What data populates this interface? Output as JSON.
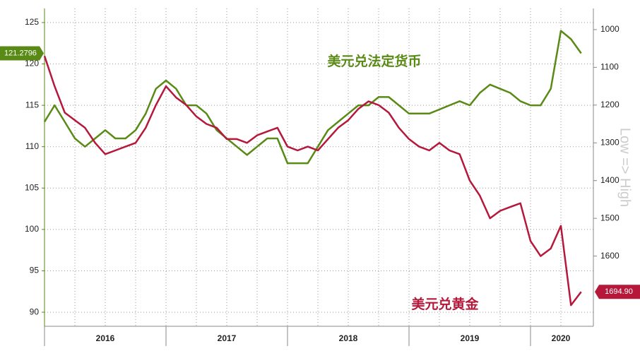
{
  "chart_data": {
    "type": "line",
    "annotations": [
      {
        "text": "美元兑法定货币",
        "series": 0
      },
      {
        "text": "美元兑黄金",
        "series": 1
      }
    ],
    "y2_title": "Low => High",
    "categories": [
      null,
      null,
      null,
      null,
      null,
      null,
      "2016",
      null,
      null,
      null,
      null,
      null,
      null,
      null,
      null,
      null,
      null,
      null,
      "2017",
      null,
      null,
      null,
      null,
      null,
      null,
      null,
      null,
      null,
      null,
      null,
      "2018",
      null,
      null,
      null,
      null,
      null,
      null,
      null,
      null,
      null,
      null,
      null,
      "2019",
      null,
      null,
      null,
      null,
      null,
      null,
      null,
      null,
      "2020",
      null,
      null
    ],
    "series": [
      {
        "name": "美元兑法定货币",
        "color": "#5a8a16",
        "axis": "y",
        "values": [
          113,
          115,
          113,
          111,
          110,
          111,
          112,
          111,
          111,
          112,
          114,
          117,
          118,
          117,
          115,
          115,
          114,
          112,
          111,
          110,
          109,
          110,
          111,
          111,
          108,
          108,
          108,
          110,
          112,
          113,
          114,
          115,
          115,
          116,
          116,
          115,
          114,
          114,
          114,
          114.5,
          115,
          115.5,
          115,
          116.5,
          117.5,
          117,
          116.5,
          115.5,
          115,
          115,
          117,
          124,
          123,
          121.2796
        ]
      },
      {
        "name": "美元兑黄金",
        "color": "#b5183a",
        "axis": "y2",
        "values": [
          1070,
          1150,
          1220,
          1240,
          1260,
          1300,
          1330,
          1320,
          1310,
          1300,
          1260,
          1200,
          1150,
          1180,
          1200,
          1230,
          1250,
          1260,
          1290,
          1290,
          1300,
          1280,
          1270,
          1260,
          1310,
          1320,
          1310,
          1320,
          1290,
          1260,
          1240,
          1210,
          1190,
          1200,
          1220,
          1260,
          1290,
          1310,
          1320,
          1300,
          1320,
          1330,
          1400,
          1440,
          1500,
          1480,
          1470,
          1460,
          1560,
          1600,
          1580,
          1520,
          1730,
          1694.9
        ],
        "value_labels": [
          null,
          null,
          null,
          null,
          null,
          null,
          null,
          null,
          null,
          null,
          null,
          null,
          null,
          null,
          null,
          null,
          null,
          null,
          null,
          null,
          null,
          null,
          null,
          null,
          null,
          null,
          null,
          null,
          null,
          null,
          null,
          null,
          null,
          null,
          null,
          null,
          null,
          null,
          null,
          null,
          null,
          null,
          null,
          null,
          null,
          null,
          null,
          null,
          null,
          null,
          null,
          null,
          null,
          "1694.90"
        ]
      }
    ],
    "ylim": [
      88.3,
      126.7
    ],
    "yticks": [
      90,
      95,
      100,
      105,
      110,
      115,
      120,
      125
    ],
    "y2lim": [
      944,
      1786
    ],
    "y2ticks": [
      1000,
      1100,
      1200,
      1300,
      1400,
      1500,
      1600
    ],
    "y2_inverted": true,
    "grid": true
  }
}
